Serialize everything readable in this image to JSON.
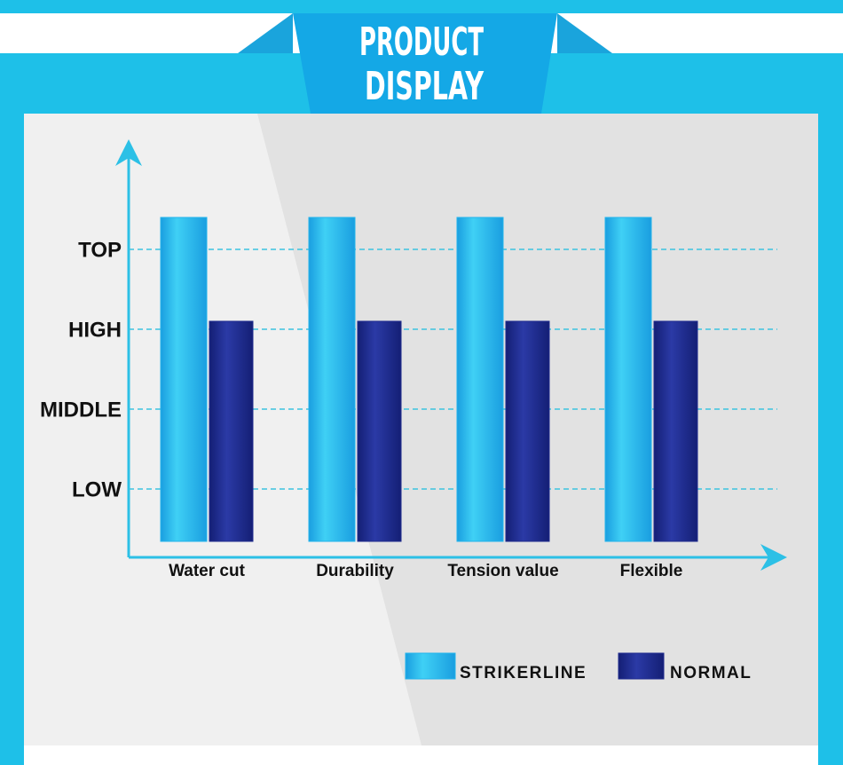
{
  "header": {
    "lines": [
      "PRODUCT",
      "DISPLAY"
    ]
  },
  "chart_data": {
    "type": "bar",
    "categories": [
      "Water cut",
      "Durability",
      "Tension value",
      "Flexible"
    ],
    "series": [
      {
        "name": "STRIKERLINE",
        "color": "#22b4ec",
        "values": [
          4.4,
          4.4,
          4.4,
          4.4
        ]
      },
      {
        "name": "NORMAL",
        "color": "#1f2b8e",
        "values": [
          3.1,
          3.1,
          3.1,
          3.1
        ]
      }
    ],
    "ylim": [
      0.15,
      5.2
    ],
    "yticks": [
      {
        "value": 1,
        "label": "LOW"
      },
      {
        "value": 2,
        "label": "MIDDLE"
      },
      {
        "value": 3,
        "label": "HIGH"
      },
      {
        "value": 4,
        "label": "TOP"
      }
    ],
    "grid": true
  }
}
